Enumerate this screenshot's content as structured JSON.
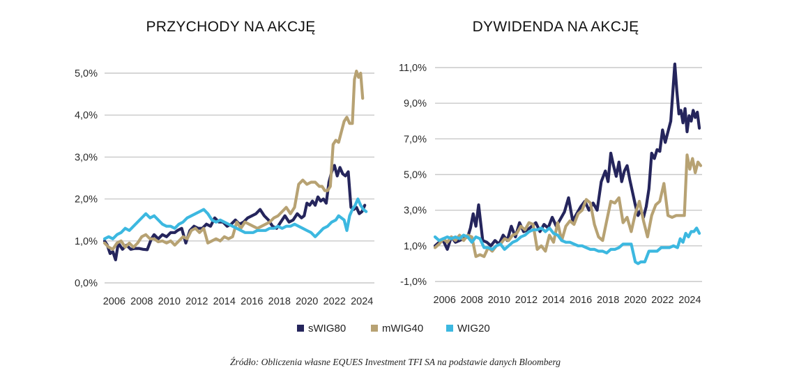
{
  "chart_data": [
    {
      "type": "line",
      "title": "PRZYCHODY NA AKCJĘ",
      "xlabel": "",
      "ylabel": "",
      "xlim": [
        2005.3,
        2024.9
      ],
      "ylim": [
        0,
        5.2
      ],
      "x_ticks": [
        2006,
        2008,
        2010,
        2012,
        2014,
        2016,
        2018,
        2020,
        2022,
        2024
      ],
      "x_tick_labels": [
        "2006",
        "2008",
        "2010",
        "2012",
        "2014",
        "2016",
        "2018",
        "2020",
        "2022",
        "2024"
      ],
      "y_ticks": [
        0,
        1,
        2,
        3,
        4,
        5
      ],
      "y_tick_labels": [
        "0,0%",
        "1,0%",
        "2,0%",
        "3,0%",
        "4,0%",
        "5,0%"
      ],
      "grid": "horizontal",
      "series": [
        {
          "name": "sWIG80",
          "color": "#25255c",
          "x": [
            2005.3,
            2005.5,
            2005.7,
            2005.9,
            2006.1,
            2006.3,
            2006.6,
            2006.9,
            2007.2,
            2007.5,
            2007.8,
            2008.1,
            2008.4,
            2008.7,
            2008.9,
            2009.2,
            2009.5,
            2009.8,
            2010.1,
            2010.4,
            2010.6,
            2010.9,
            2011.2,
            2011.5,
            2011.8,
            2012.1,
            2012.4,
            2012.7,
            2013.0,
            2013.3,
            2013.6,
            2013.9,
            2014.2,
            2014.5,
            2014.8,
            2015.1,
            2015.4,
            2015.7,
            2016.0,
            2016.3,
            2016.6,
            2016.9,
            2017.2,
            2017.5,
            2017.8,
            2018.1,
            2018.4,
            2018.7,
            2019.0,
            2019.3,
            2019.6,
            2019.8,
            2020.0,
            2020.2,
            2020.4,
            2020.6,
            2020.8,
            2021.0,
            2021.2,
            2021.4,
            2021.6,
            2021.8,
            2022.0,
            2022.2,
            2022.4,
            2022.6,
            2022.8,
            2023.0,
            2023.2,
            2023.4,
            2023.6,
            2023.8,
            2024.0,
            2024.2
          ],
          "values": [
            1.0,
            0.9,
            0.7,
            0.75,
            0.55,
            0.95,
            0.8,
            0.9,
            0.8,
            0.82,
            0.82,
            0.8,
            0.79,
            1.05,
            1.15,
            1.05,
            1.15,
            1.1,
            1.2,
            1.2,
            1.25,
            1.3,
            0.95,
            1.25,
            1.35,
            1.3,
            1.3,
            1.4,
            1.35,
            1.55,
            1.45,
            1.45,
            1.35,
            1.4,
            1.5,
            1.4,
            1.45,
            1.55,
            1.6,
            1.65,
            1.75,
            1.6,
            1.5,
            1.35,
            1.3,
            1.45,
            1.6,
            1.45,
            1.5,
            1.65,
            1.55,
            1.6,
            1.9,
            1.85,
            1.95,
            1.85,
            2.05,
            1.95,
            2.0,
            1.9,
            2.4,
            2.65,
            2.8,
            2.55,
            2.75,
            2.6,
            2.55,
            2.65,
            1.8,
            1.75,
            1.8,
            1.65,
            1.7,
            1.85
          ]
        },
        {
          "name": "mWIG40",
          "color": "#b7a273",
          "x": [
            2005.3,
            2005.6,
            2005.9,
            2006.2,
            2006.5,
            2006.8,
            2007.1,
            2007.4,
            2007.7,
            2008.0,
            2008.3,
            2008.6,
            2008.9,
            2009.2,
            2009.5,
            2009.8,
            2010.1,
            2010.4,
            2010.7,
            2011.0,
            2011.3,
            2011.6,
            2011.9,
            2012.2,
            2012.5,
            2012.8,
            2013.1,
            2013.4,
            2013.7,
            2014.0,
            2014.3,
            2014.6,
            2014.9,
            2015.2,
            2015.5,
            2015.8,
            2016.1,
            2016.4,
            2016.7,
            2017.0,
            2017.3,
            2017.6,
            2017.9,
            2018.2,
            2018.5,
            2018.8,
            2019.1,
            2019.4,
            2019.7,
            2020.0,
            2020.3,
            2020.6,
            2020.9,
            2021.1,
            2021.3,
            2021.5,
            2021.7,
            2021.9,
            2022.1,
            2022.3,
            2022.5,
            2022.7,
            2022.9,
            2023.1,
            2023.3,
            2023.45,
            2023.6,
            2023.75,
            2023.9,
            2024.05
          ],
          "values": [
            0.95,
            0.85,
            0.8,
            0.95,
            1.0,
            0.85,
            0.95,
            0.85,
            0.95,
            1.1,
            1.15,
            1.05,
            1.05,
            0.98,
            1.0,
            0.95,
            1.0,
            0.9,
            1.0,
            1.1,
            1.05,
            1.25,
            1.3,
            1.2,
            1.3,
            0.95,
            1.0,
            1.05,
            1.0,
            1.1,
            1.05,
            1.1,
            1.45,
            1.3,
            1.45,
            1.4,
            1.35,
            1.3,
            1.35,
            1.4,
            1.45,
            1.55,
            1.6,
            1.7,
            1.8,
            1.65,
            1.8,
            2.35,
            2.45,
            2.35,
            2.4,
            2.4,
            2.3,
            2.3,
            2.2,
            2.2,
            2.3,
            3.3,
            3.4,
            3.35,
            3.6,
            3.85,
            3.95,
            3.8,
            3.8,
            4.85,
            5.05,
            4.9,
            5.0,
            4.4
          ]
        },
        {
          "name": "WIG20",
          "color": "#3cb8e0",
          "x": [
            2005.3,
            2005.6,
            2005.9,
            2006.2,
            2006.5,
            2006.8,
            2007.1,
            2007.4,
            2007.7,
            2008.0,
            2008.3,
            2008.6,
            2008.9,
            2009.2,
            2009.5,
            2009.8,
            2010.1,
            2010.4,
            2010.7,
            2011.0,
            2011.3,
            2011.6,
            2011.9,
            2012.2,
            2012.5,
            2012.8,
            2013.1,
            2013.4,
            2013.7,
            2014.0,
            2014.3,
            2014.6,
            2014.9,
            2015.2,
            2015.5,
            2015.8,
            2016.1,
            2016.4,
            2016.7,
            2017.0,
            2017.3,
            2017.6,
            2017.9,
            2018.2,
            2018.5,
            2018.8,
            2019.1,
            2019.4,
            2019.7,
            2020.0,
            2020.3,
            2020.6,
            2020.9,
            2021.2,
            2021.5,
            2021.8,
            2022.1,
            2022.3,
            2022.5,
            2022.7,
            2022.9,
            2023.1,
            2023.3,
            2023.5,
            2023.7,
            2023.9,
            2024.1,
            2024.3
          ],
          "values": [
            1.05,
            1.1,
            1.05,
            1.15,
            1.2,
            1.3,
            1.25,
            1.35,
            1.45,
            1.55,
            1.65,
            1.55,
            1.6,
            1.5,
            1.4,
            1.35,
            1.35,
            1.3,
            1.4,
            1.45,
            1.55,
            1.6,
            1.65,
            1.7,
            1.75,
            1.65,
            1.5,
            1.45,
            1.5,
            1.45,
            1.4,
            1.35,
            1.3,
            1.25,
            1.2,
            1.2,
            1.2,
            1.25,
            1.25,
            1.25,
            1.3,
            1.3,
            1.35,
            1.3,
            1.35,
            1.35,
            1.4,
            1.35,
            1.3,
            1.25,
            1.2,
            1.1,
            1.2,
            1.3,
            1.35,
            1.45,
            1.5,
            1.6,
            1.55,
            1.5,
            1.25,
            1.6,
            1.75,
            1.85,
            2.0,
            1.85,
            1.75,
            1.7
          ]
        }
      ]
    },
    {
      "type": "line",
      "title": "DYWIDENDA NA AKCJĘ",
      "xlabel": "",
      "ylabel": "",
      "xlim": [
        2005.3,
        2024.9
      ],
      "ylim": [
        -1,
        11
      ],
      "x_ticks": [
        2006,
        2008,
        2010,
        2012,
        2014,
        2016,
        2018,
        2020,
        2022,
        2024
      ],
      "x_tick_labels": [
        "2006",
        "2008",
        "2010",
        "2012",
        "2014",
        "2016",
        "2018",
        "2020",
        "2022",
        "2024"
      ],
      "y_ticks": [
        -1,
        1,
        3,
        5,
        7,
        9,
        11
      ],
      "y_tick_labels": [
        "-1,0%",
        "1,0%",
        "3,0%",
        "5,0%",
        "7,0%",
        "9,0%",
        "11,0%"
      ],
      "grid": "horizontal",
      "series": [
        {
          "name": "sWIG80",
          "color": "#25255c",
          "x": [
            2005.3,
            2005.6,
            2005.9,
            2006.2,
            2006.5,
            2006.8,
            2007.1,
            2007.4,
            2007.7,
            2007.9,
            2008.1,
            2008.3,
            2008.5,
            2008.8,
            2009.1,
            2009.4,
            2009.7,
            2010.0,
            2010.3,
            2010.6,
            2010.9,
            2011.2,
            2011.5,
            2011.8,
            2012.1,
            2012.4,
            2012.7,
            2013.0,
            2013.3,
            2013.6,
            2013.9,
            2014.2,
            2014.5,
            2014.8,
            2015.1,
            2015.4,
            2015.7,
            2016.0,
            2016.3,
            2016.6,
            2016.9,
            2017.2,
            2017.5,
            2017.8,
            2018.0,
            2018.2,
            2018.4,
            2018.6,
            2018.8,
            2019.0,
            2019.2,
            2019.4,
            2019.6,
            2019.8,
            2020.0,
            2020.2,
            2020.4,
            2020.6,
            2020.8,
            2021.0,
            2021.2,
            2021.4,
            2021.6,
            2021.8,
            2022.0,
            2022.2,
            2022.4,
            2022.6,
            2022.75,
            2022.9,
            2023.05,
            2023.2,
            2023.35,
            2023.5,
            2023.65,
            2023.8,
            2023.95,
            2024.1,
            2024.25,
            2024.4,
            2024.55,
            2024.7
          ],
          "values": [
            1.0,
            1.2,
            1.3,
            0.8,
            1.5,
            1.2,
            1.3,
            1.4,
            1.5,
            2.0,
            2.8,
            2.1,
            3.3,
            1.3,
            1.2,
            1.0,
            1.3,
            1.1,
            1.6,
            1.3,
            2.1,
            1.5,
            2.3,
            1.8,
            1.9,
            2.1,
            2.3,
            1.8,
            2.2,
            2.0,
            2.6,
            2.1,
            2.5,
            2.9,
            3.7,
            2.4,
            2.8,
            3.2,
            3.5,
            3.0,
            3.4,
            3.0,
            4.6,
            5.2,
            4.6,
            6.2,
            5.5,
            4.9,
            5.7,
            4.6,
            5.2,
            5.5,
            4.7,
            4.0,
            3.3,
            2.7,
            3.0,
            2.6,
            3.2,
            4.2,
            6.2,
            5.9,
            6.4,
            6.3,
            7.5,
            6.8,
            7.4,
            8.0,
            9.6,
            11.2,
            9.7,
            8.4,
            8.6,
            7.9,
            8.7,
            7.4,
            8.3,
            8.0,
            8.6,
            8.2,
            8.5,
            7.6
          ]
        },
        {
          "name": "mWIG40",
          "color": "#b7a273",
          "x": [
            2005.3,
            2005.6,
            2005.9,
            2006.2,
            2006.5,
            2006.8,
            2007.1,
            2007.4,
            2007.7,
            2008.0,
            2008.3,
            2008.6,
            2008.9,
            2009.2,
            2009.5,
            2009.8,
            2010.1,
            2010.4,
            2010.7,
            2011.0,
            2011.3,
            2011.6,
            2011.9,
            2012.2,
            2012.5,
            2012.8,
            2013.1,
            2013.4,
            2013.7,
            2014.0,
            2014.3,
            2014.6,
            2014.9,
            2015.2,
            2015.5,
            2015.8,
            2016.1,
            2016.4,
            2016.7,
            2017.0,
            2017.3,
            2017.6,
            2017.9,
            2018.2,
            2018.5,
            2018.8,
            2019.1,
            2019.4,
            2019.7,
            2020.0,
            2020.3,
            2020.6,
            2020.9,
            2021.2,
            2021.5,
            2021.8,
            2022.1,
            2022.4,
            2022.7,
            2023.0,
            2023.3,
            2023.6,
            2023.8,
            2024.0,
            2024.2,
            2024.4,
            2024.6,
            2024.8
          ],
          "values": [
            0.9,
            1.1,
            1.4,
            1.2,
            1.5,
            1.3,
            1.6,
            1.3,
            1.6,
            1.5,
            0.4,
            0.5,
            0.4,
            0.9,
            0.7,
            1.0,
            1.1,
            1.4,
            1.3,
            1.6,
            1.7,
            2.1,
            1.9,
            2.3,
            2.2,
            0.8,
            1.0,
            0.7,
            1.6,
            1.2,
            2.3,
            1.3,
            2.1,
            2.4,
            2.2,
            2.8,
            3.0,
            3.6,
            3.4,
            2.2,
            1.5,
            1.3,
            2.4,
            3.5,
            3.4,
            3.7,
            2.3,
            2.6,
            1.8,
            2.8,
            3.5,
            2.4,
            1.5,
            2.7,
            3.3,
            3.5,
            4.5,
            2.7,
            2.6,
            2.7,
            2.7,
            2.7,
            6.1,
            5.3,
            5.9,
            5.1,
            5.7,
            5.5
          ]
        },
        {
          "name": "WIG20",
          "color": "#3cb8e0",
          "x": [
            2005.3,
            2005.6,
            2005.9,
            2006.2,
            2006.5,
            2006.8,
            2007.1,
            2007.4,
            2007.7,
            2008.0,
            2008.3,
            2008.6,
            2008.9,
            2009.2,
            2009.5,
            2009.8,
            2010.1,
            2010.4,
            2010.7,
            2011.0,
            2011.3,
            2011.6,
            2011.9,
            2012.2,
            2012.5,
            2012.8,
            2013.1,
            2013.4,
            2013.7,
            2014.0,
            2014.3,
            2014.6,
            2014.9,
            2015.2,
            2015.5,
            2015.8,
            2016.1,
            2016.4,
            2016.7,
            2017.0,
            2017.3,
            2017.6,
            2017.9,
            2018.2,
            2018.5,
            2018.8,
            2019.1,
            2019.4,
            2019.7,
            2020.0,
            2020.2,
            2020.4,
            2020.7,
            2021.0,
            2021.3,
            2021.6,
            2021.9,
            2022.2,
            2022.5,
            2022.8,
            2023.1,
            2023.3,
            2023.5,
            2023.7,
            2023.9,
            2024.1,
            2024.3,
            2024.5,
            2024.7
          ],
          "values": [
            1.5,
            1.3,
            1.4,
            1.5,
            1.4,
            1.5,
            1.4,
            1.6,
            1.5,
            1.2,
            1.5,
            1.4,
            0.9,
            0.9,
            0.8,
            1.0,
            1.1,
            0.8,
            1.0,
            1.2,
            1.3,
            1.5,
            1.6,
            1.8,
            1.9,
            1.9,
            2.0,
            1.8,
            2.0,
            1.7,
            1.6,
            1.3,
            1.2,
            1.2,
            1.1,
            1.0,
            1.0,
            0.9,
            0.8,
            0.8,
            0.7,
            0.7,
            0.6,
            0.8,
            0.8,
            0.9,
            1.1,
            1.1,
            1.1,
            0.1,
            0.0,
            0.1,
            0.1,
            0.7,
            0.7,
            0.7,
            0.9,
            0.9,
            0.9,
            1.0,
            0.9,
            1.4,
            1.2,
            1.7,
            1.5,
            1.8,
            1.8,
            2.0,
            1.7
          ]
        }
      ]
    }
  ],
  "legend": {
    "position": "bottom-center",
    "items": [
      {
        "label": "sWIG80",
        "color": "#25255c"
      },
      {
        "label": "mWIG40",
        "color": "#b7a273"
      },
      {
        "label": "WIG20",
        "color": "#3cb8e0"
      }
    ]
  },
  "source_note": "Źródło: Obliczenia własne EQUES Investment TFI SA na podstawie danych Bloomberg"
}
